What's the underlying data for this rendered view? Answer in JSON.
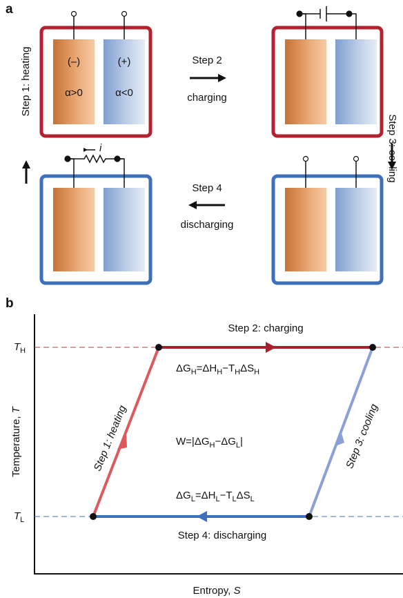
{
  "panel_a": {
    "label": "a",
    "negative": "(–)",
    "positive": "(+)",
    "alpha_pos": "α>0",
    "alpha_neg": "α<0",
    "step2": "Step 2",
    "step2_action": "charging",
    "step1": "Step 1: heating",
    "step3": "Step 3: cooling",
    "step4": "Step 4",
    "step4_action": "discharging",
    "current": "i"
  },
  "panel_b": {
    "label": "b",
    "top_edge": "Step 2: charging",
    "bottom_edge": "Step 4: discharging",
    "left_edge": "Step 1: heating",
    "right_edge": "Step 3: cooling",
    "t_high": {
      "text": "T",
      "sub": "H"
    },
    "t_low": {
      "text": "T",
      "sub": "L"
    },
    "eq_high": [
      {
        "text": "ΔG",
        "sub": "H"
      },
      {
        "text": "=ΔH",
        "sub": "H"
      },
      {
        "text": "−T",
        "sub": "H"
      },
      {
        "text": "ΔS",
        "sub": "H"
      }
    ],
    "eq_low": [
      {
        "text": "ΔG",
        "sub": "L"
      },
      {
        "text": "=ΔH",
        "sub": "L"
      },
      {
        "text": "−T",
        "sub": "L"
      },
      {
        "text": "ΔS",
        "sub": "L"
      }
    ],
    "work": [
      {
        "text": "W=|ΔG",
        "sub": "H"
      },
      {
        "text": "−ΔG",
        "sub": "L"
      },
      {
        "text": "|"
      }
    ],
    "y_axis": {
      "text": "Temperature, ",
      "var": "T"
    },
    "x_axis": {
      "text": "Entropy, ",
      "var": "S"
    }
  }
}
